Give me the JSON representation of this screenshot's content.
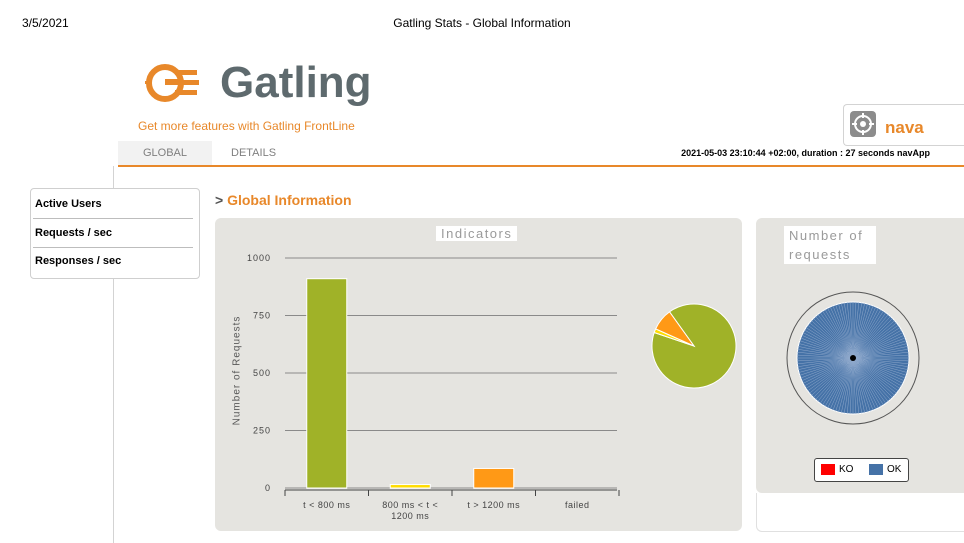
{
  "print_header": {
    "date": "3/5/2021",
    "title": "Gatling Stats - Global Information"
  },
  "brand": {
    "name": "Gatling",
    "frontline_link": "Get more features with Gatling FrontLine",
    "nav_label": "nava"
  },
  "tabs": [
    {
      "label": "GLOBAL"
    },
    {
      "label": "DETAILS"
    }
  ],
  "run_info": "2021-05-03 23:10:44 +02:00, duration : 27 seconds navApp",
  "sidebar": {
    "items": [
      {
        "label": "Active Users"
      },
      {
        "label": "Requests / sec"
      },
      {
        "label": "Responses / sec"
      }
    ]
  },
  "section_title": "Global Information",
  "section_marker": ">",
  "indicators_title": "Indicators",
  "requests_title": "Number of requests",
  "legend": [
    {
      "label": "KO",
      "color": "#ff0000"
    },
    {
      "label": "OK",
      "color": "#4572a7"
    }
  ],
  "colors": {
    "accent": "#e8882a",
    "green": "#a0b228",
    "yellow": "#ffdd00",
    "orange": "#ff9916",
    "ok": "#4572a7",
    "ko": "#ff0000"
  },
  "chart_data": {
    "type": "bar",
    "title": "Indicators",
    "ylabel": "Number of Requests",
    "xlabel": "",
    "ylim": [
      0,
      1000
    ],
    "yticks": [
      "0",
      "250",
      "500",
      "750",
      "1000"
    ],
    "categories": [
      "t < 800 ms",
      "800 ms < t < 1200 ms",
      "t > 1200 ms",
      "failed"
    ],
    "values": [
      910,
      15,
      85,
      0
    ],
    "bar_colors": [
      "#a0b228",
      "#ffdd00",
      "#ff9916",
      "#ff0000"
    ],
    "grid": true,
    "pie": {
      "values": [
        910,
        15,
        85
      ],
      "colors": [
        "#a0b228",
        "#ffdd00",
        "#ff9916"
      ]
    }
  }
}
